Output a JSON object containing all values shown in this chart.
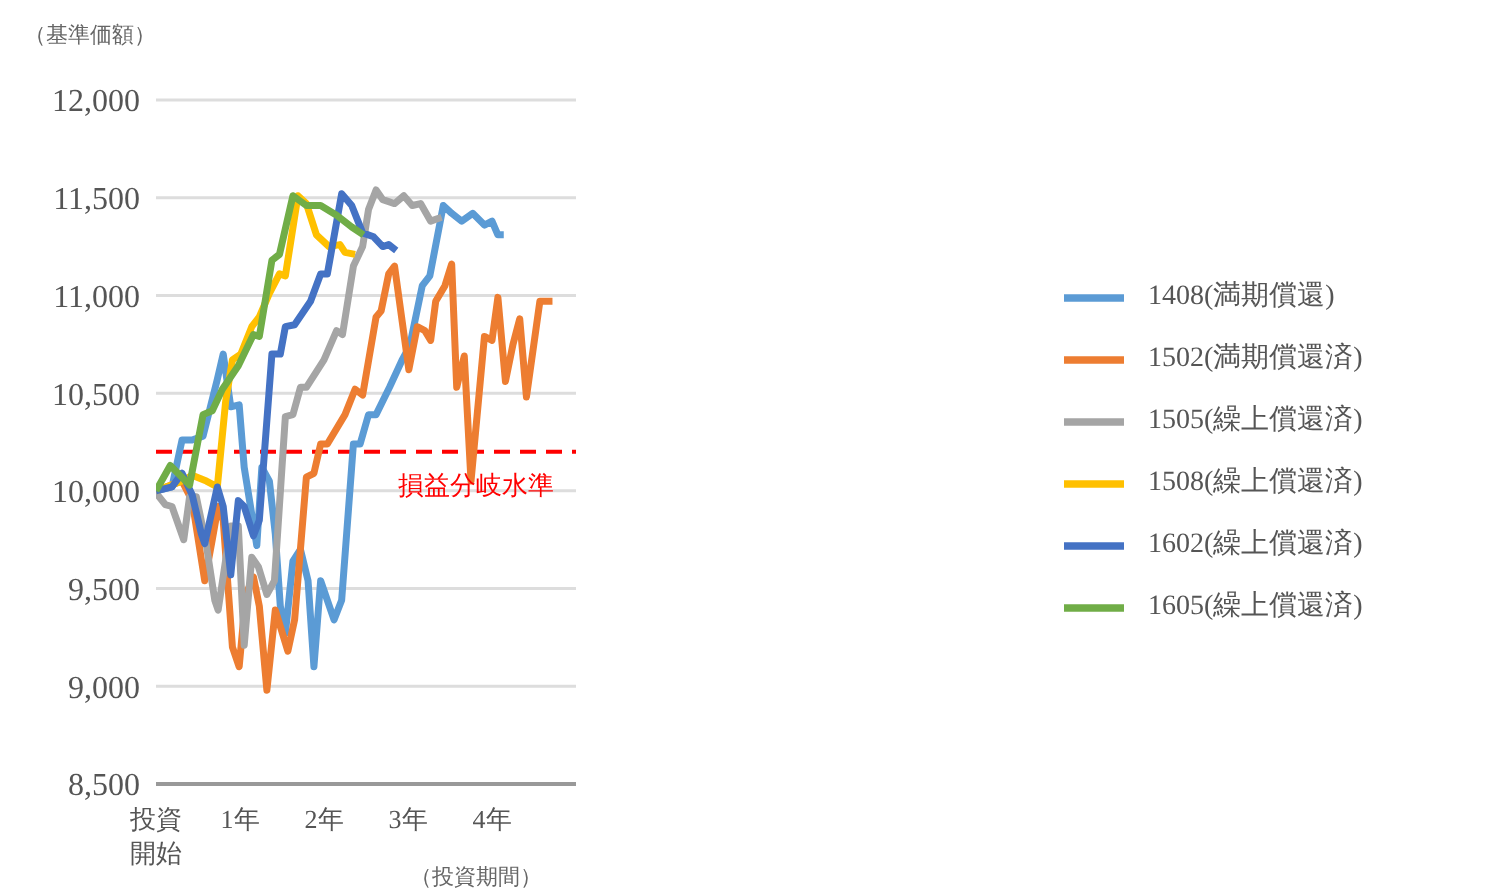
{
  "chart_data": {
    "type": "line",
    "ylabel": "（基準価額）",
    "xlabel": "（投資期間）",
    "xlim": [
      0,
      5
    ],
    "xticks": [
      {
        "value": 0,
        "label": "投資開始"
      },
      {
        "value": 1,
        "label": "1年"
      },
      {
        "value": 2,
        "label": "2年"
      },
      {
        "value": 3,
        "label": "3年"
      },
      {
        "value": 4,
        "label": "4年"
      }
    ],
    "ylim": [
      8500,
      12000
    ],
    "yticks": [
      {
        "value": 8500,
        "label": "8,500"
      },
      {
        "value": 9000,
        "label": "9,000"
      },
      {
        "value": 9500,
        "label": "9,500"
      },
      {
        "value": 10000,
        "label": "10,000"
      },
      {
        "value": 10500,
        "label": "10,500"
      },
      {
        "value": 11000,
        "label": "11,000"
      },
      {
        "value": 11500,
        "label": "11,500"
      },
      {
        "value": 12000,
        "label": "12,000"
      }
    ],
    "grid": "y",
    "legend": "right",
    "marker": "none",
    "line_style": "solid",
    "ref_lines": [
      {
        "axis": "y",
        "value": 10200,
        "label": "損益分岐水準",
        "color": "#ff0000",
        "line_style": "dashed"
      }
    ],
    "series": [
      {
        "name": "1408(満期償還)",
        "color": "#5b9bd5",
        "x": [
          0,
          0.19,
          0.31,
          0.43,
          0.56,
          0.73,
          0.8,
          0.89,
          0.99,
          1.05,
          1.14,
          1.2,
          1.26,
          1.35,
          1.42,
          1.48,
          1.54,
          1.63,
          1.72,
          1.81,
          1.88,
          1.96,
          2.12,
          2.21,
          2.35,
          2.43,
          2.53,
          2.62,
          2.78,
          2.93,
          3.02,
          3.17,
          3.26,
          3.42,
          3.52,
          3.64,
          3.77,
          3.91,
          4,
          4.07,
          4.14
        ],
        "values": [
          10000,
          10020,
          10260,
          10260,
          10280,
          10570,
          10700,
          10430,
          10440,
          10120,
          9880,
          9720,
          10120,
          10050,
          9780,
          9410,
          9270,
          9640,
          9700,
          9540,
          9100,
          9540,
          9340,
          9440,
          10240,
          10240,
          10390,
          10390,
          10530,
          10670,
          10740,
          11050,
          11100,
          11460,
          11420,
          11380,
          11420,
          11360,
          11380,
          11310,
          11310
        ]
      },
      {
        "name": "1502(満期償還済)",
        "color": "#ed7d31",
        "x": [
          0,
          0.31,
          0.43,
          0.58,
          0.67,
          0.74,
          0.8,
          0.91,
          0.99,
          1.07,
          1.16,
          1.23,
          1.32,
          1.42,
          1.57,
          1.65,
          1.79,
          1.88,
          1.96,
          2.04,
          2.25,
          2.37,
          2.46,
          2.62,
          2.68,
          2.77,
          2.84,
          3.01,
          3.11,
          3.2,
          3.27,
          3.33,
          3.44,
          3.52,
          3.58,
          3.67,
          3.75,
          3.91,
          4,
          4.07,
          4.16,
          4.25,
          4.33,
          4.41,
          4.57,
          4.72
        ],
        "values": [
          10000,
          10050,
          9950,
          9540,
          9750,
          9920,
          9850,
          9200,
          9100,
          9470,
          9560,
          9410,
          8980,
          9390,
          9180,
          9340,
          10070,
          10090,
          10240,
          10240,
          10390,
          10520,
          10490,
          10890,
          10920,
          11110,
          11150,
          10620,
          10840,
          10820,
          10770,
          10970,
          11050,
          11160,
          10530,
          10690,
          10050,
          10790,
          10770,
          10990,
          10560,
          10750,
          10880,
          10480,
          10970,
          10970
        ]
      },
      {
        "name": "1505(繰上償還済)",
        "color": "#a5a5a5",
        "x": [
          0,
          0.11,
          0.19,
          0.33,
          0.4,
          0.48,
          0.6,
          0.7,
          0.74,
          0.89,
          0.98,
          1.05,
          1.14,
          1.22,
          1.32,
          1.41,
          1.54,
          1.63,
          1.72,
          1.79,
          2,
          2.15,
          2.22,
          2.35,
          2.46,
          2.53,
          2.62,
          2.7,
          2.84,
          2.95,
          3.05,
          3.15,
          3.27,
          3.4
        ],
        "values": [
          9990,
          9930,
          9920,
          9750,
          9970,
          9970,
          9720,
          9440,
          9390,
          9820,
          9820,
          9210,
          9660,
          9610,
          9470,
          9540,
          10380,
          10390,
          10530,
          10530,
          10670,
          10820,
          10800,
          11150,
          11250,
          11440,
          11540,
          11490,
          11470,
          11510,
          11460,
          11470,
          11380,
          11400
        ]
      },
      {
        "name": "1508(繰上償還済)",
        "color": "#ffc000",
        "x": [
          0,
          0.31,
          0.43,
          0.6,
          0.73,
          0.83,
          0.91,
          1.01,
          1.14,
          1.23,
          1.35,
          1.47,
          1.54,
          1.69,
          1.79,
          1.91,
          2.06,
          2.19,
          2.25,
          2.37
        ],
        "values": [
          10000,
          10050,
          10080,
          10050,
          10020,
          10460,
          10670,
          10700,
          10840,
          10890,
          11010,
          11110,
          11100,
          11510,
          11470,
          11310,
          11250,
          11260,
          11220,
          11210
        ]
      },
      {
        "name": "1602(繰上償還済)",
        "color": "#4472c4",
        "x": [
          0,
          0.19,
          0.31,
          0.43,
          0.54,
          0.58,
          0.73,
          0.8,
          0.89,
          0.98,
          1.05,
          1.16,
          1.23,
          1.38,
          1.48,
          1.54,
          1.65,
          1.84,
          1.96,
          2.04,
          2.21,
          2.33,
          2.46,
          2.59,
          2.7,
          2.77,
          2.86
        ],
        "values": [
          10000,
          10020,
          10090,
          9980,
          9780,
          9730,
          10020,
          9920,
          9570,
          9950,
          9920,
          9770,
          9850,
          10700,
          10700,
          10840,
          10850,
          10970,
          11110,
          11110,
          11520,
          11460,
          11320,
          11300,
          11250,
          11260,
          11230
        ]
      },
      {
        "name": "1605(繰上償還済)",
        "color": "#70ad47",
        "x": [
          0,
          0.17,
          0.4,
          0.56,
          0.67,
          0.79,
          0.98,
          1.16,
          1.23,
          1.38,
          1.47,
          1.63,
          1.79,
          1.96,
          2.15,
          2.33,
          2.47
        ],
        "values": [
          10000,
          10130,
          10030,
          10390,
          10410,
          10520,
          10640,
          10800,
          10790,
          11180,
          11210,
          11510,
          11460,
          11460,
          11410,
          11350,
          11310
        ]
      }
    ]
  }
}
